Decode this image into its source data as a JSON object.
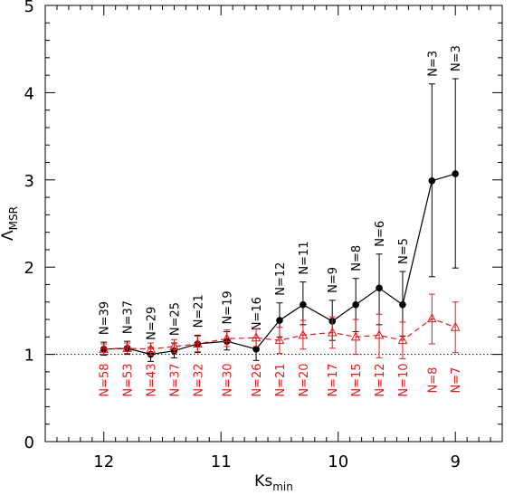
{
  "chart_data": {
    "type": "line",
    "xlabel": "Ks",
    "xlabel_sub": "min",
    "ylabel": "Λ",
    "ylabel_sub": "MSR",
    "x_reversed": true,
    "xlim": [
      12.5,
      8.6
    ],
    "ylim": [
      0,
      5
    ],
    "x_ticks": [
      12,
      11,
      10,
      9
    ],
    "y_ticks": [
      0,
      1,
      2,
      3,
      4,
      5
    ],
    "reference_line": {
      "y": 1,
      "style": "dotted"
    },
    "series": [
      {
        "style": "solid",
        "marker": "filled-circle",
        "color": "#000000",
        "x": [
          12.0,
          11.8,
          11.6,
          11.4,
          11.2,
          10.95,
          10.7,
          10.5,
          10.3,
          10.05,
          9.85,
          9.65,
          9.45,
          9.2,
          9.0
        ],
        "y": [
          1.06,
          1.07,
          1.0,
          1.04,
          1.12,
          1.15,
          1.06,
          1.39,
          1.57,
          1.38,
          1.57,
          1.76,
          1.57,
          2.99,
          3.07
        ],
        "err_lo": [
          0.07,
          0.07,
          0.08,
          0.08,
          0.1,
          0.1,
          0.13,
          0.19,
          0.23,
          0.22,
          0.31,
          0.42,
          0.36,
          1.1,
          1.08
        ],
        "err_hi": [
          0.08,
          0.08,
          0.08,
          0.09,
          0.1,
          0.11,
          0.13,
          0.2,
          0.26,
          0.24,
          0.3,
          0.39,
          0.38,
          1.11,
          1.09
        ],
        "labels": [
          "N=39",
          "N=37",
          "N=29",
          "N=25",
          "N=21",
          "N=19",
          "N=16",
          "N=12",
          "N=11",
          "N=9",
          "N=8",
          "N=6",
          "N=5",
          "N=3",
          "N=3"
        ]
      },
      {
        "style": "dashed",
        "marker": "open-triangle",
        "color": "#e41a1c",
        "x": [
          12.0,
          11.8,
          11.6,
          11.4,
          11.2,
          10.95,
          10.7,
          10.5,
          10.3,
          10.05,
          9.85,
          9.65,
          9.45,
          9.2,
          9.0
        ],
        "y": [
          1.06,
          1.07,
          1.06,
          1.09,
          1.12,
          1.18,
          1.19,
          1.16,
          1.22,
          1.25,
          1.2,
          1.22,
          1.16,
          1.41,
          1.31
        ],
        "err_lo": [
          0.06,
          0.06,
          0.07,
          0.07,
          0.09,
          0.09,
          0.1,
          0.15,
          0.16,
          0.18,
          0.2,
          0.26,
          0.21,
          0.29,
          0.29
        ],
        "err_hi": [
          0.06,
          0.06,
          0.07,
          0.08,
          0.09,
          0.1,
          0.1,
          0.15,
          0.17,
          0.18,
          0.2,
          0.24,
          0.21,
          0.28,
          0.29
        ],
        "labels": [
          "N=58",
          "N=53",
          "N=43",
          "N=37",
          "N=32",
          "N=30",
          "N=26",
          "N=21",
          "N=20",
          "N=17",
          "N=15",
          "N=12",
          "N=10",
          "N=8",
          "N=7"
        ]
      }
    ]
  }
}
